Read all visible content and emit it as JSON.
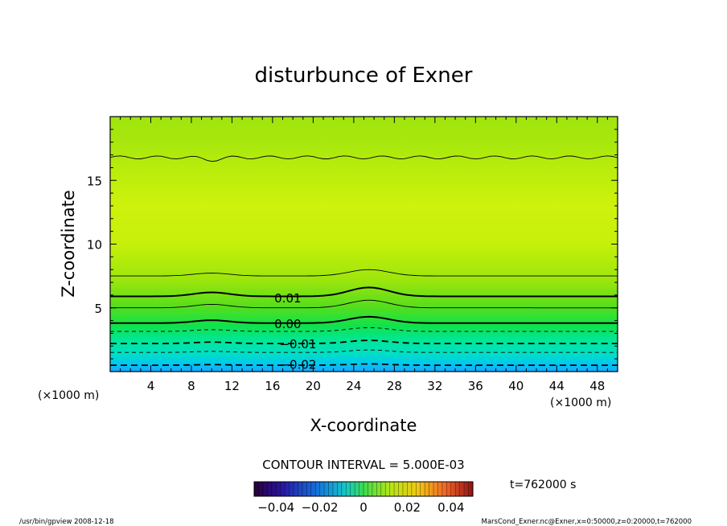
{
  "chart_data": {
    "type": "contour",
    "title": "disturbunce of Exner",
    "xlabel": "X-coordinate",
    "ylabel": "Z-coordinate",
    "x_unit": "(×1000 m)",
    "y_unit": "(×1000 m)",
    "xlim": [
      0,
      50
    ],
    "ylim": [
      0,
      20
    ],
    "x_ticks": [
      4,
      8,
      12,
      16,
      20,
      24,
      28,
      32,
      36,
      40,
      44,
      48
    ],
    "y_ticks": [
      5,
      10,
      15
    ],
    "contour_interval_text": "CONTOUR INTERVAL = 5.000E-03",
    "contour_labels": [
      {
        "value": 0.01,
        "text": "0.01",
        "x": 17.5,
        "z": 5.8
      },
      {
        "value": 0.0,
        "text": "0.00",
        "x": 17.5,
        "z": 3.8
      },
      {
        "value": -0.01,
        "text": "−0.01",
        "x": 18.5,
        "z": 2.2
      },
      {
        "value": -0.02,
        "text": "−0.02",
        "x": 18.5,
        "z": 0.6
      }
    ],
    "contour_levels": [
      {
        "value": 0.015,
        "z": 7.5,
        "bump": 0.5,
        "style": "thin"
      },
      {
        "value": 0.01,
        "z": 5.9,
        "bump": 0.7,
        "style": "thick"
      },
      {
        "value": 0.005,
        "z": 5.0,
        "bump": 0.6,
        "style": "thin"
      },
      {
        "value": 0.0,
        "z": 3.8,
        "bump": 0.5,
        "style": "thick"
      },
      {
        "value": -0.005,
        "z": 3.15,
        "bump": 0.3,
        "style": "dashed"
      },
      {
        "value": -0.01,
        "z": 2.2,
        "bump": 0.25,
        "style": "dashed-thick"
      },
      {
        "value": -0.015,
        "z": 1.5,
        "bump": 0.2,
        "style": "dashed"
      },
      {
        "value": -0.02,
        "z": 0.5,
        "bump": 0.1,
        "style": "dashed-thick"
      },
      {
        "value": 0.015,
        "z": 16.8,
        "bump": 0.0,
        "style": "thin"
      }
    ],
    "colorbar": {
      "min": -0.05,
      "max": 0.05,
      "tick_labels": [
        "−0.04",
        "−0.02",
        "0",
        "0.02",
        "0.04"
      ],
      "tick_values": [
        -0.04,
        -0.02,
        0,
        0.02,
        0.04
      ]
    },
    "time_label": "t=762000 s"
  },
  "footer": {
    "left": "/usr/bin/gpview   2008-12-18",
    "right": "MarsCond_Exner.nc@Exner,x=0:50000,z=0:20000,t=762000"
  }
}
